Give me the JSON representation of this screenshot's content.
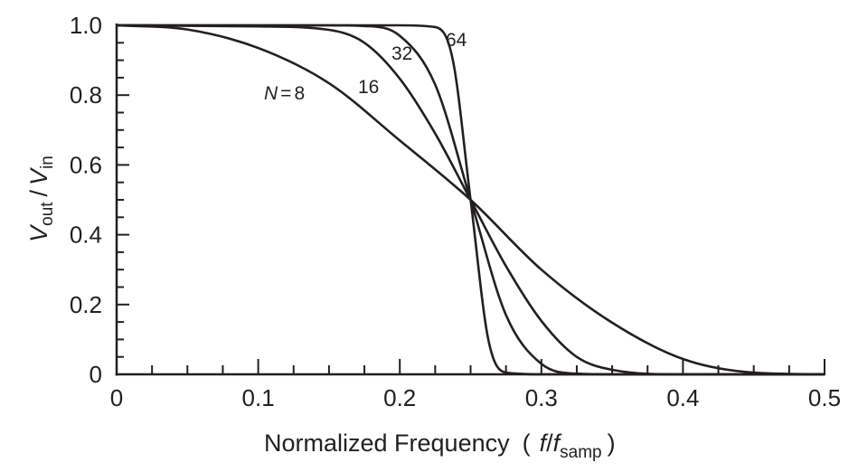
{
  "chart_data": {
    "type": "line",
    "title": "",
    "xlabel": {
      "main": "Normalized Frequency",
      "open": "(",
      "f": "f",
      "slash": "/",
      "f2": "f",
      "sub": "samp",
      "close": ")"
    },
    "ylabel": {
      "v1": "V",
      "sub1": "out",
      "slash": "/",
      "v2": "V",
      "sub2": "in"
    },
    "xlim": [
      0,
      0.5
    ],
    "ylim": [
      0,
      1.0
    ],
    "xticks": [
      "0",
      "0.1",
      "0.2",
      "0.3",
      "0.4",
      "0.5"
    ],
    "xtick_values": [
      0,
      0.1,
      0.2,
      0.3,
      0.4,
      0.5
    ],
    "yticks": [
      "0",
      "0.2",
      "0.4",
      "0.6",
      "0.8",
      "1.0"
    ],
    "ytick_values": [
      0,
      0.2,
      0.4,
      0.6,
      0.8,
      1.0
    ],
    "x_minor_step": 0.025,
    "y_minor_step": 0.05,
    "grid": false,
    "line_color": "#231f20",
    "series": [
      {
        "name": "N = 8",
        "label_prefix": "N",
        "label_eq": "=",
        "label_value": "8",
        "x": [
          0,
          0.05,
          0.1,
          0.15,
          0.2,
          0.25,
          0.3,
          0.35,
          0.4,
          0.45,
          0.5
        ],
        "y": [
          1.0,
          0.988,
          0.935,
          0.834,
          0.67,
          0.5,
          0.3,
          0.148,
          0.044,
          0.005,
          0.0
        ]
      },
      {
        "name": "16",
        "label_value": "16",
        "x": [
          0,
          0.1,
          0.15,
          0.175,
          0.2,
          0.225,
          0.25,
          0.275,
          0.3,
          0.325,
          0.35,
          0.4,
          0.5
        ],
        "y": [
          1.0,
          0.997,
          0.987,
          0.95,
          0.847,
          0.69,
          0.5,
          0.31,
          0.153,
          0.05,
          0.013,
          0.0,
          0.0
        ]
      },
      {
        "name": "32",
        "label_value": "32",
        "x": [
          0,
          0.15,
          0.175,
          0.2,
          0.225,
          0.25,
          0.275,
          0.3,
          0.325,
          0.35,
          0.5
        ],
        "y": [
          1.0,
          1.0,
          0.998,
          0.97,
          0.83,
          0.5,
          0.17,
          0.03,
          0.002,
          0.0,
          0.0
        ]
      },
      {
        "name": "64",
        "label_value": "64",
        "x": [
          0,
          0.2,
          0.225,
          0.2375,
          0.25,
          0.2625,
          0.275,
          0.3,
          0.5
        ],
        "y": [
          1.0,
          1.0,
          0.995,
          0.9,
          0.5,
          0.1,
          0.005,
          0.0,
          0.0
        ]
      }
    ]
  }
}
